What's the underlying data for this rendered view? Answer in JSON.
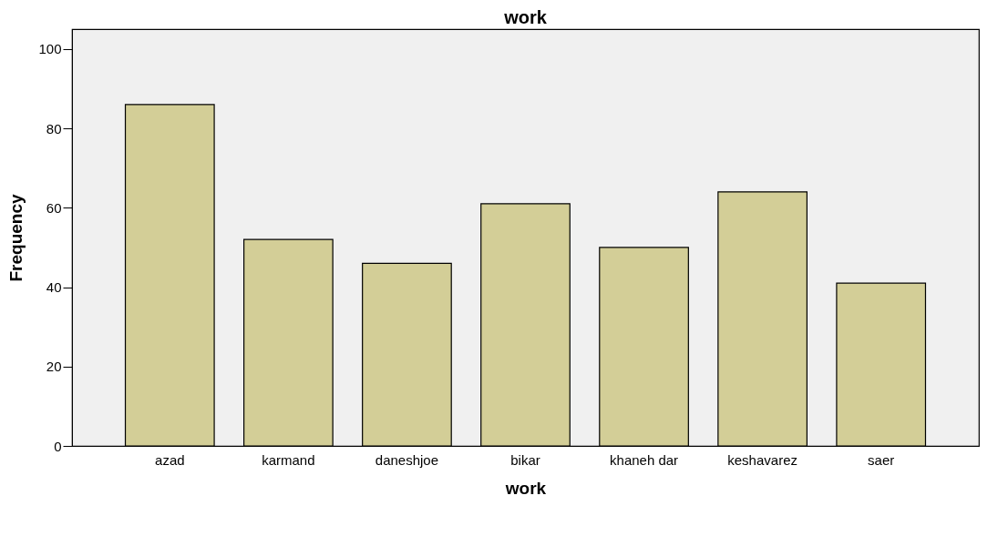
{
  "chart_data": {
    "type": "bar",
    "title": "work",
    "xlabel": "work",
    "ylabel": "Frequency",
    "categories": [
      "azad",
      "karmand",
      "daneshjoe",
      "bikar",
      "khaneh dar",
      "keshavarez",
      "saer"
    ],
    "values": [
      86,
      52,
      46,
      61,
      50,
      64,
      41
    ],
    "color": "#d3ce97",
    "ylim": [
      0,
      105
    ],
    "yticks": [
      0,
      20,
      40,
      60,
      80,
      100
    ],
    "grid": false
  }
}
